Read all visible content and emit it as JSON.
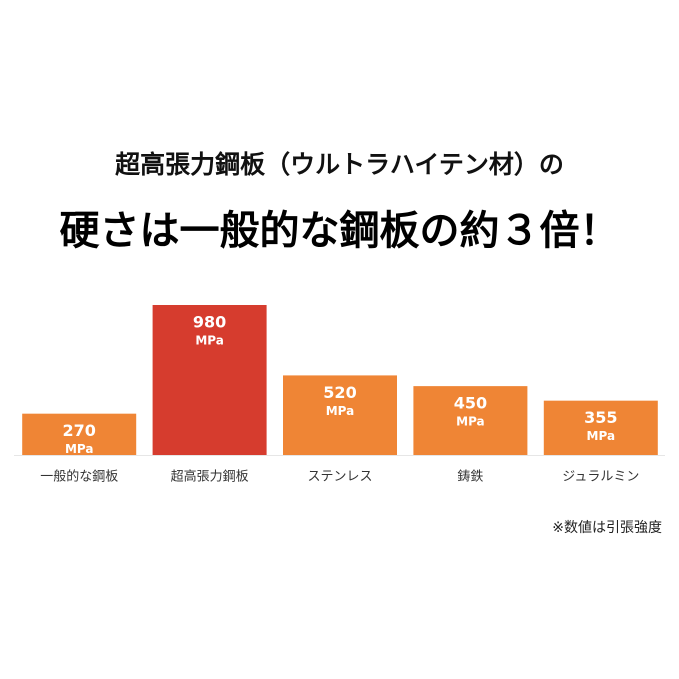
{
  "chart_data": {
    "type": "bar",
    "title": "超高張力鋼板（ウルトラハイテン材）の",
    "subtitle": "硬さは一般的な鋼板の約３倍！",
    "categories": [
      "一般的な鋼板",
      "超高張力鋼板",
      "ステンレス",
      "鋳鉄",
      "ジュラルミン"
    ],
    "values": [
      270,
      980,
      520,
      450,
      355
    ],
    "unit": "MPa",
    "colors": [
      "#ef8535",
      "#d63c2e",
      "#ef8535",
      "#ef8535",
      "#ef8535"
    ],
    "note": "※数値は引張強度"
  }
}
